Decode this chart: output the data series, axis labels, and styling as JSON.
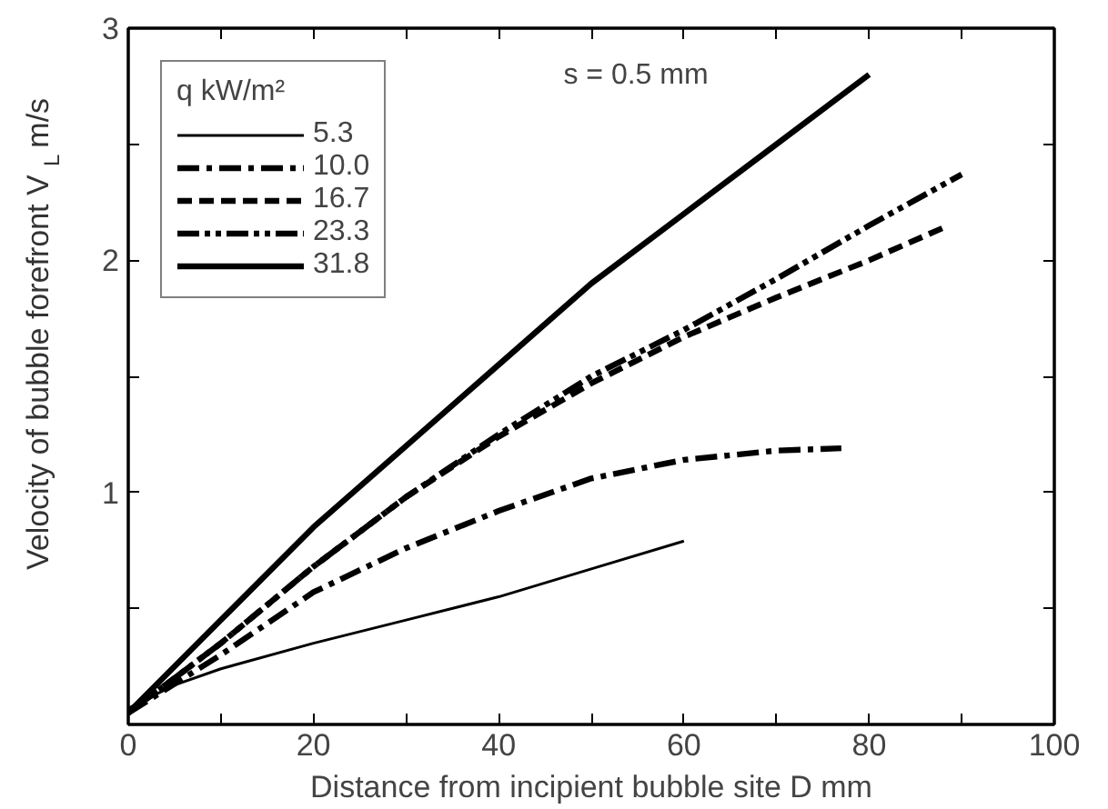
{
  "chart_data": {
    "type": "line",
    "xlabel": "Distance from incipient bubble site D mm",
    "ylabel": "Velocity of bubble forefront  V$_{L}$ m/s",
    "legend_title": "q kW/m²",
    "annotations": [
      "s = 0.5 mm"
    ],
    "xlim": [
      0,
      100
    ],
    "ylim": [
      0,
      3
    ],
    "xticks": [
      0,
      {
        "value": 10,
        "label": null
      },
      20,
      {
        "value": 30,
        "label": null
      },
      40,
      {
        "value": 50,
        "label": null
      },
      60,
      {
        "value": 70,
        "label": null
      },
      80,
      {
        "value": 90,
        "label": null
      },
      100
    ],
    "yticks": [
      {
        "value": 0,
        "label": null
      },
      {
        "value": 0.5,
        "label": null
      },
      1,
      {
        "value": 1.5,
        "label": null
      },
      2,
      {
        "value": 2.5,
        "label": null
      },
      3
    ],
    "grid": false,
    "legend": "top left",
    "marker": "none",
    "series": [
      {
        "name": "5.3",
        "color": "#000000",
        "line_style": "solid",
        "x": [
          0,
          5,
          10,
          20,
          30,
          40,
          50,
          60
        ],
        "values": [
          0.07,
          0.17,
          0.24,
          0.35,
          0.45,
          0.55,
          0.67,
          0.79
        ]
      },
      {
        "name": "10.0",
        "color": "#000000",
        "line_style": "dashdot",
        "x": [
          0,
          10,
          20,
          30,
          40,
          50,
          60,
          70,
          77
        ],
        "values": [
          0.05,
          0.3,
          0.57,
          0.76,
          0.92,
          1.06,
          1.14,
          1.18,
          1.19
        ]
      },
      {
        "name": "16.7",
        "color": "#000000",
        "line_style": "dashed",
        "x": [
          0,
          10,
          20,
          30,
          40,
          50,
          60,
          70,
          80,
          88
        ],
        "values": [
          0.05,
          0.35,
          0.68,
          0.98,
          1.24,
          1.47,
          1.67,
          1.84,
          2.0,
          2.14
        ]
      },
      {
        "name": "23.3",
        "color": "#000000",
        "line_style": "dashdotdot",
        "x": [
          0,
          10,
          20,
          30,
          40,
          50,
          60,
          70,
          80,
          90
        ],
        "values": [
          0.05,
          0.35,
          0.68,
          0.98,
          1.25,
          1.5,
          1.7,
          1.92,
          2.15,
          2.37
        ]
      },
      {
        "name": "31.8",
        "color": "#000000",
        "line_style": "solid",
        "x": [
          0,
          10,
          20,
          30,
          40,
          50,
          60,
          70,
          80
        ],
        "values": [
          0.05,
          0.45,
          0.85,
          1.2,
          1.55,
          1.9,
          2.2,
          2.5,
          2.8
        ]
      }
    ]
  }
}
